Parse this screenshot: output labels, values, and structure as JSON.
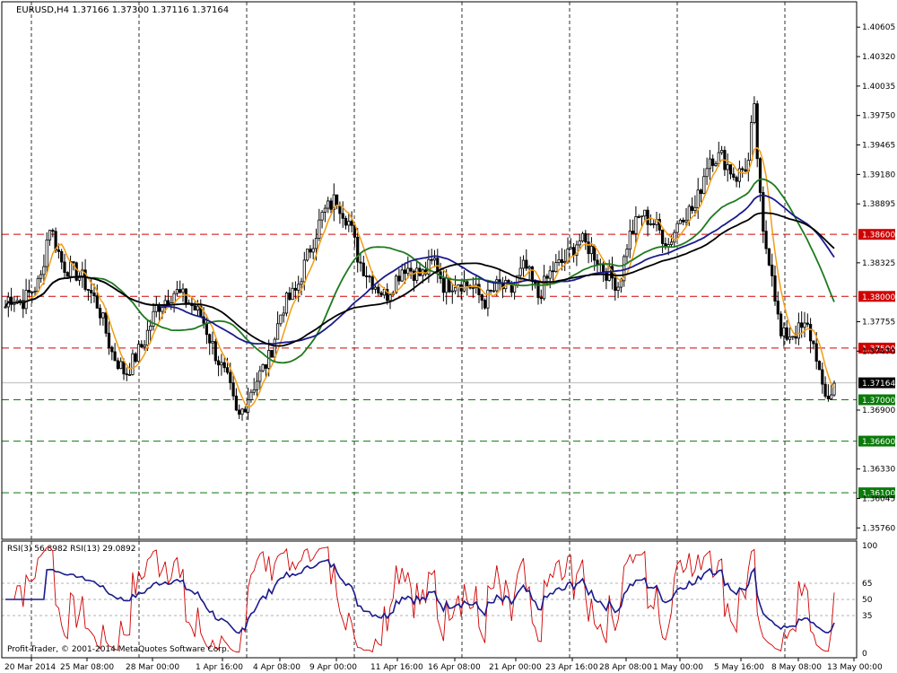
{
  "window": {
    "symbol_header": "EURUSD,H4  1.37166 1.37300 1.37116 1.37164",
    "watermark": "Profit-Trader, © 2001-2014 MetaQuotes Software Corp."
  },
  "chart_data": {
    "type": "candlestick",
    "price_axis": {
      "ylim": [
        1.3565,
        1.4085
      ],
      "tick_labels": [
        "1.40605",
        "1.40320",
        "1.40035",
        "1.39750",
        "1.39465",
        "1.39180",
        "1.38895",
        "1.38325",
        "1.37755",
        "1.37470",
        "1.36900",
        "1.36330",
        "1.36045",
        "1.35760"
      ]
    },
    "current_price": "1.37164",
    "horizontal_levels": [
      {
        "label": "1.38600",
        "value": 1.386,
        "color": "#d00000"
      },
      {
        "label": "1.38000",
        "value": 1.38,
        "color": "#d00000"
      },
      {
        "label": "1.37500",
        "value": 1.375,
        "color": "#d00000"
      },
      {
        "label": "1.37000",
        "value": 1.37,
        "color": "#0a7a0a"
      },
      {
        "label": "1.36600",
        "value": 1.366,
        "color": "#0a7a0a"
      },
      {
        "label": "1.36100",
        "value": 1.361,
        "color": "#0a7a0a"
      }
    ],
    "time_axis": {
      "tick_labels": [
        "20 Mar 2014",
        "25 Mar 08:00",
        "28 Mar 00:00",
        "1 Apr 16:00",
        "4 Apr 08:00",
        "9 Apr 00:00",
        "11 Apr 16:00",
        "16 Apr 08:00",
        "21 Apr 00:00",
        "23 Apr 16:00",
        "28 Apr 08:00",
        "1 May 00:00",
        "5 May 16:00",
        "8 May 08:00",
        "13 May 00:00"
      ]
    },
    "path_anchors": [
      [
        0,
        1.3775
      ],
      [
        10,
        1.38
      ],
      [
        25,
        1.3795
      ],
      [
        45,
        1.3815
      ],
      [
        55,
        1.387
      ],
      [
        70,
        1.383
      ],
      [
        90,
        1.382
      ],
      [
        110,
        1.379
      ],
      [
        125,
        1.3745
      ],
      [
        140,
        1.3725
      ],
      [
        160,
        1.3755
      ],
      [
        175,
        1.379
      ],
      [
        195,
        1.3805
      ],
      [
        210,
        1.3795
      ],
      [
        225,
        1.378
      ],
      [
        240,
        1.3745
      ],
      [
        255,
        1.3715
      ],
      [
        265,
        1.368
      ],
      [
        280,
        1.371
      ],
      [
        300,
        1.374
      ],
      [
        315,
        1.379
      ],
      [
        330,
        1.3805
      ],
      [
        345,
        1.3845
      ],
      [
        360,
        1.388
      ],
      [
        375,
        1.3895
      ],
      [
        390,
        1.387
      ],
      [
        400,
        1.3835
      ],
      [
        415,
        1.3815
      ],
      [
        430,
        1.38
      ],
      [
        450,
        1.383
      ],
      [
        470,
        1.382
      ],
      [
        485,
        1.3835
      ],
      [
        495,
        1.381
      ],
      [
        510,
        1.3815
      ],
      [
        525,
        1.381
      ],
      [
        540,
        1.3795
      ],
      [
        555,
        1.381
      ],
      [
        570,
        1.3805
      ],
      [
        585,
        1.383
      ],
      [
        600,
        1.38
      ],
      [
        615,
        1.3825
      ],
      [
        630,
        1.3835
      ],
      [
        645,
        1.3855
      ],
      [
        660,
        1.3845
      ],
      [
        670,
        1.383
      ],
      [
        680,
        1.382
      ],
      [
        690,
        1.381
      ],
      [
        700,
        1.3855
      ],
      [
        715,
        1.388
      ],
      [
        730,
        1.387
      ],
      [
        745,
        1.385
      ],
      [
        760,
        1.388
      ],
      [
        775,
        1.3885
      ],
      [
        790,
        1.3935
      ],
      [
        805,
        1.3935
      ],
      [
        820,
        1.3915
      ],
      [
        835,
        1.393
      ],
      [
        840,
        1.399
      ],
      [
        850,
        1.386
      ],
      [
        860,
        1.383
      ],
      [
        870,
        1.376
      ],
      [
        885,
        1.3765
      ],
      [
        900,
        1.377
      ],
      [
        910,
        1.3745
      ],
      [
        918,
        1.37
      ],
      [
        925,
        1.3705
      ],
      [
        932,
        1.3716
      ]
    ],
    "moving_averages": [
      {
        "color": "#f39c12",
        "window": 6
      },
      {
        "color": "#1e7a1e",
        "window": 30
      },
      {
        "color": "#1a1a8c",
        "window": 45
      },
      {
        "color": "#000000",
        "window": 60
      }
    ],
    "rsi": {
      "labels": [
        "RSI(3) 56.8982",
        "RSI(13) 29.0892"
      ],
      "levels": [
        "65",
        "50",
        "35"
      ],
      "axis_labels": [
        "100",
        "65",
        "50",
        "35",
        "0"
      ],
      "rsi3_color": "#d00000",
      "rsi13_color": "#1a1a8c"
    }
  }
}
